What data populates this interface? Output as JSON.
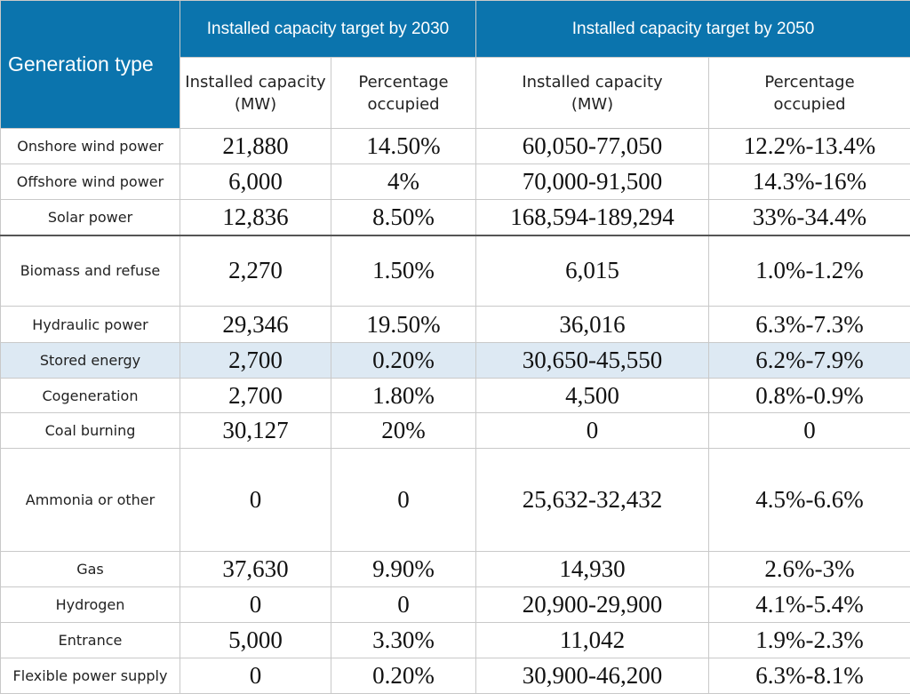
{
  "header": {
    "generation_type": "Generation type",
    "target_2030": "Installed capacity target by 2030",
    "target_2050": "Installed capacity target by 2050",
    "cap_line1": "Installed capacity",
    "cap_line2": "(MW)",
    "cap2050_line1": "Installed capacity",
    "cap2050_line2": "(MW)",
    "pct_line1": "Percentage",
    "pct_line2": "occupied",
    "pct2050_line1": "Percentage",
    "pct2050_line2": "occupied"
  },
  "rows": [
    {
      "type": "Onshore wind power",
      "cap2030": "21,880",
      "pct2030": "14.50%",
      "cap2050": "60,050-77,050",
      "pct2050": "12.2%-13.4%"
    },
    {
      "type": "Offshore wind power",
      "cap2030": "6,000",
      "pct2030": "4%",
      "cap2050": "70,000-91,500",
      "pct2050": "14.3%-16%"
    },
    {
      "type": "Solar power",
      "cap2030": "12,836",
      "pct2030": "8.50%",
      "cap2050": "168,594-189,294",
      "pct2050": "33%-34.4%"
    },
    {
      "type": "Biomass and refuse",
      "cap2030": "2,270",
      "pct2030": "1.50%",
      "cap2050": "6,015",
      "pct2050": "1.0%-1.2%"
    },
    {
      "type": "Hydraulic power",
      "cap2030": "29,346",
      "pct2030": "19.50%",
      "cap2050": "36,016",
      "pct2050": "6.3%-7.3%"
    },
    {
      "type": "Stored energy",
      "cap2030": "2,700",
      "pct2030": "0.20%",
      "cap2050": "30,650-45,550",
      "pct2050": "6.2%-7.9%"
    },
    {
      "type": "Cogeneration",
      "cap2030": "2,700",
      "pct2030": "1.80%",
      "cap2050": "4,500",
      "pct2050": "0.8%-0.9%"
    },
    {
      "type": "Coal burning",
      "cap2030": "30,127",
      "pct2030": "20%",
      "cap2050": "0",
      "pct2050": "0"
    },
    {
      "type": "Ammonia or other",
      "cap2030": "0",
      "pct2030": "0",
      "cap2050": "25,632-32,432",
      "pct2050": "4.5%-6.6%"
    },
    {
      "type": "Gas",
      "cap2030": "37,630",
      "pct2030": "9.90%",
      "cap2050": "14,930",
      "pct2050": "2.6%-3%"
    },
    {
      "type": "Hydrogen",
      "cap2030": "0",
      "pct2030": "0",
      "cap2050": "20,900-29,900",
      "pct2050": "4.1%-5.4%"
    },
    {
      "type": "Entrance",
      "cap2030": "5,000",
      "pct2030": "3.30%",
      "cap2050": "11,042",
      "pct2050": "1.9%-2.3%"
    },
    {
      "type": "Flexible power supply",
      "cap2030": "0",
      "pct2030": "0.20%",
      "cap2050": "30,900-46,200",
      "pct2050": "6.3%-8.1%"
    }
  ],
  "colors": {
    "header_bg": "#0b74ad",
    "highlight_row": "#dde9f3"
  }
}
